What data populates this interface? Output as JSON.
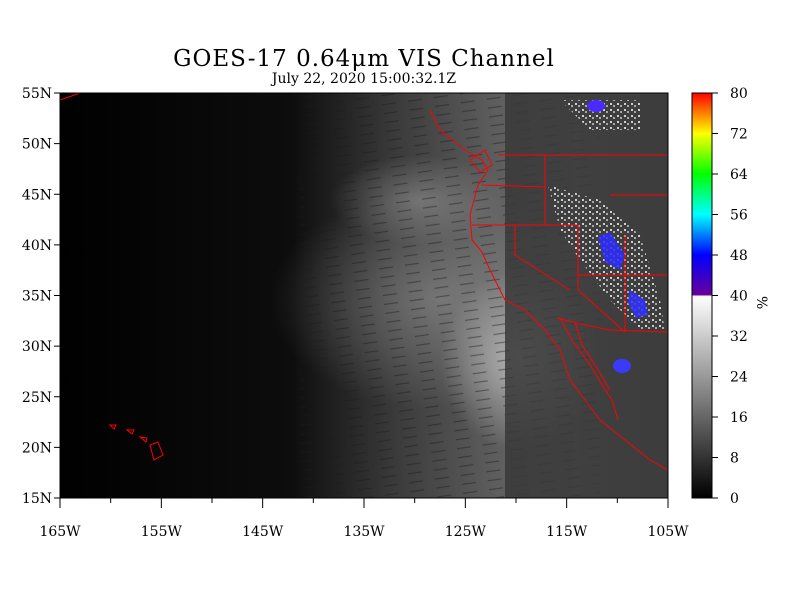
{
  "title": "GOES-17  0.64μm VIS Channel",
  "subtitle": "July 22,  2020 15:00:32.1Z",
  "map": {
    "lon_range": [
      -165,
      -105
    ],
    "lat_range": [
      15,
      55
    ],
    "lat_labels": [
      {
        "lat": 55,
        "label": "55N"
      },
      {
        "lat": 50,
        "label": "50N"
      },
      {
        "lat": 45,
        "label": "45N"
      },
      {
        "lat": 40,
        "label": "40N"
      },
      {
        "lat": 35,
        "label": "35N"
      },
      {
        "lat": 30,
        "label": "30N"
      },
      {
        "lat": 25,
        "label": "25N"
      },
      {
        "lat": 20,
        "label": "20N"
      },
      {
        "lat": 15,
        "label": "15N"
      }
    ],
    "lon_labels": [
      {
        "lon": -165,
        "label": "165W"
      },
      {
        "lon": -155,
        "label": "155W"
      },
      {
        "lon": -145,
        "label": "145W"
      },
      {
        "lon": -135,
        "label": "135W"
      },
      {
        "lon": -125,
        "label": "125W"
      },
      {
        "lon": -115,
        "label": "115W"
      },
      {
        "lon": -105,
        "label": "105W"
      }
    ],
    "minor_lon_ticks": [
      -160,
      -150,
      -140,
      -130,
      -120,
      -110
    ],
    "boundary_color": "#ff0000"
  },
  "colorbar": {
    "min": 0,
    "max": 80,
    "unit": "%",
    "labels": [
      {
        "value": 80,
        "label": "80"
      },
      {
        "value": 72,
        "label": "72"
      },
      {
        "value": 64,
        "label": "64"
      },
      {
        "value": 56,
        "label": "56"
      },
      {
        "value": 48,
        "label": "48"
      },
      {
        "value": 40,
        "label": "40"
      },
      {
        "value": 32,
        "label": "32"
      },
      {
        "value": 24,
        "label": "24"
      },
      {
        "value": 16,
        "label": "16"
      },
      {
        "value": 8,
        "label": "8"
      },
      {
        "value": 0,
        "label": "0"
      }
    ],
    "gray_stops": [
      {
        "value": 0,
        "color": "#000000"
      },
      {
        "value": 40,
        "color": "#ffffff"
      }
    ],
    "color_stops": [
      {
        "value": 40,
        "color": "#6a0099"
      },
      {
        "value": 48,
        "color": "#0000ff"
      },
      {
        "value": 56,
        "color": "#00ffff"
      },
      {
        "value": 64,
        "color": "#00ff00"
      },
      {
        "value": 72,
        "color": "#ffff00"
      },
      {
        "value": 80,
        "color": "#ff0000"
      }
    ]
  }
}
